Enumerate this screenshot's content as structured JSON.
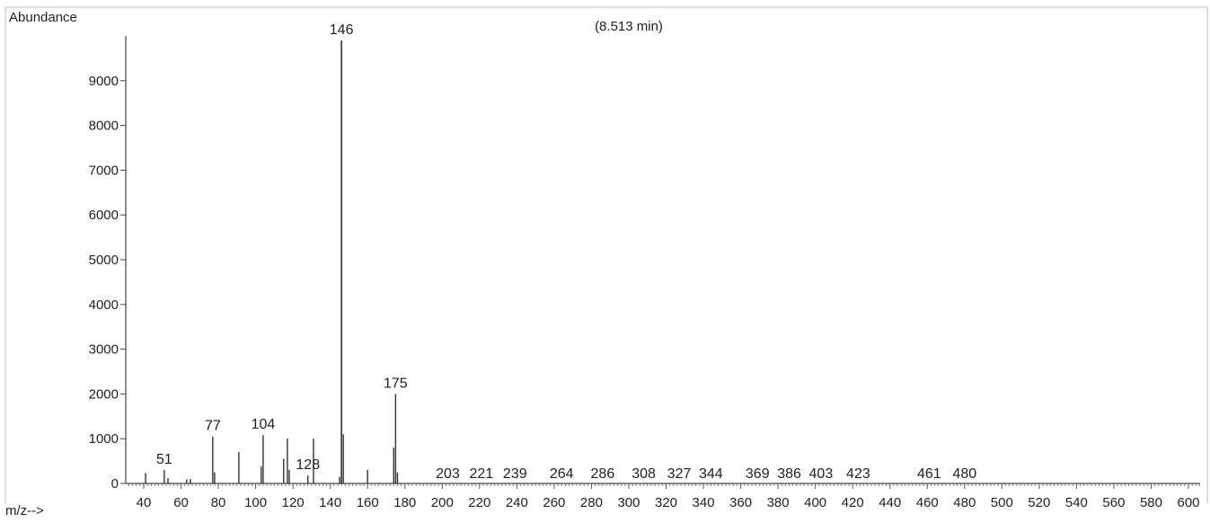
{
  "chart_data": {
    "type": "bar",
    "subtitle": "(8.513 min)",
    "ylabel": "Abundance",
    "xlabel": "m/z-->",
    "xlim": [
      30,
      610
    ],
    "ylim": [
      0,
      10000
    ],
    "x_ticks": [
      40,
      60,
      80,
      100,
      120,
      140,
      160,
      180,
      200,
      220,
      240,
      260,
      280,
      300,
      320,
      340,
      360,
      380,
      400,
      420,
      440,
      460,
      480,
      500,
      520,
      540,
      560,
      580,
      600
    ],
    "y_ticks": [
      0,
      1000,
      2000,
      3000,
      4000,
      5000,
      6000,
      7000,
      8000,
      9000
    ],
    "peaks": [
      {
        "mz": 41,
        "abundance": 230
      },
      {
        "mz": 51,
        "abundance": 300
      },
      {
        "mz": 53,
        "abundance": 120
      },
      {
        "mz": 63,
        "abundance": 90
      },
      {
        "mz": 65,
        "abundance": 100
      },
      {
        "mz": 77,
        "abundance": 1050
      },
      {
        "mz": 78,
        "abundance": 250
      },
      {
        "mz": 91,
        "abundance": 700
      },
      {
        "mz": 103,
        "abundance": 380
      },
      {
        "mz": 104,
        "abundance": 1080
      },
      {
        "mz": 115,
        "abundance": 550
      },
      {
        "mz": 117,
        "abundance": 1000
      },
      {
        "mz": 118,
        "abundance": 300
      },
      {
        "mz": 128,
        "abundance": 180
      },
      {
        "mz": 131,
        "abundance": 1000
      },
      {
        "mz": 145,
        "abundance": 150
      },
      {
        "mz": 146,
        "abundance": 9900
      },
      {
        "mz": 147,
        "abundance": 1100
      },
      {
        "mz": 160,
        "abundance": 300
      },
      {
        "mz": 174,
        "abundance": 800
      },
      {
        "mz": 175,
        "abundance": 2000
      },
      {
        "mz": 176,
        "abundance": 250
      }
    ],
    "peak_labels": [
      {
        "mz": 51,
        "text": "51",
        "abundance": 300
      },
      {
        "mz": 77,
        "text": "77",
        "abundance": 1050
      },
      {
        "mz": 104,
        "text": "104",
        "abundance": 1080
      },
      {
        "mz": 128,
        "text": "128",
        "abundance": 180
      },
      {
        "mz": 146,
        "text": "146",
        "abundance": 9900
      },
      {
        "mz": 175,
        "text": "175",
        "abundance": 2000
      },
      {
        "mz": 203,
        "text": "203",
        "abundance": 0
      },
      {
        "mz": 221,
        "text": "221",
        "abundance": 0
      },
      {
        "mz": 239,
        "text": "239",
        "abundance": 0
      },
      {
        "mz": 264,
        "text": "264",
        "abundance": 0
      },
      {
        "mz": 286,
        "text": "286",
        "abundance": 0
      },
      {
        "mz": 308,
        "text": "308",
        "abundance": 0
      },
      {
        "mz": 327,
        "text": "327",
        "abundance": 0
      },
      {
        "mz": 344,
        "text": "344",
        "abundance": 0
      },
      {
        "mz": 369,
        "text": "369",
        "abundance": 0
      },
      {
        "mz": 386,
        "text": "386",
        "abundance": 0
      },
      {
        "mz": 403,
        "text": "403",
        "abundance": 0
      },
      {
        "mz": 423,
        "text": "423",
        "abundance": 0
      },
      {
        "mz": 461,
        "text": "461",
        "abundance": 0
      },
      {
        "mz": 480,
        "text": "480",
        "abundance": 0
      }
    ],
    "grid": false,
    "color": "#333333"
  }
}
